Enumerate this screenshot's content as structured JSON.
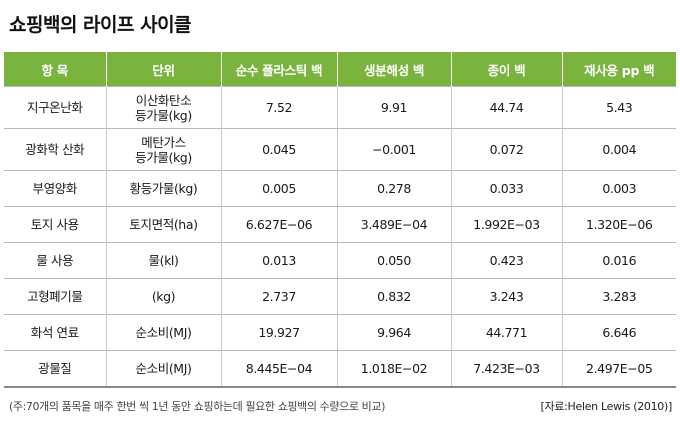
{
  "title": "쇼핑백의 라이프 사이클",
  "table": {
    "headers": [
      "항 목",
      "단위",
      "순수 플라스틱 백",
      "생분해성 백",
      "종이 백",
      "재사용 pp 백"
    ],
    "rows": [
      [
        "지구온난화",
        "이산화탄소\n등가물(kg)",
        "7.52",
        "9.91",
        "44.74",
        "5.43"
      ],
      [
        "광화학 산화",
        "메탄가스\n등가물(kg)",
        "0.045",
        "−0.001",
        "0.072",
        "0.004"
      ],
      [
        "부영양화",
        "황등가물(kg)",
        "0.005",
        "0.278",
        "0.033",
        "0.003"
      ],
      [
        "토지 사용",
        "토지면적(ha)",
        "6.627E−06",
        "3.489E−04",
        "1.992E−03",
        "1.320E−06"
      ],
      [
        "물 사용",
        "물(kl)",
        "0.013",
        "0.050",
        "0.423",
        "0.016"
      ],
      [
        "고형폐기물",
        "(kg)",
        "2.737",
        "0.832",
        "3.243",
        "3.283"
      ],
      [
        "화석 연료",
        "순소비(MJ)",
        "19.927",
        "9.964",
        "44.771",
        "6.646"
      ],
      [
        "광물질",
        "순소비(MJ)",
        "8.445E−04",
        "1.018E−02",
        "7.423E−03",
        "2.497E−05"
      ]
    ]
  },
  "footnote": "(주:70개의 품목을 매주 한번 씩 1년 동안 쇼핑하는데 필요한 쇼핑백의 수량으로 비교)",
  "source": "[자료:Helen Lewis (2010)]",
  "colors": {
    "header_bg": "#7ab43e",
    "header_text": "#ffffff"
  }
}
